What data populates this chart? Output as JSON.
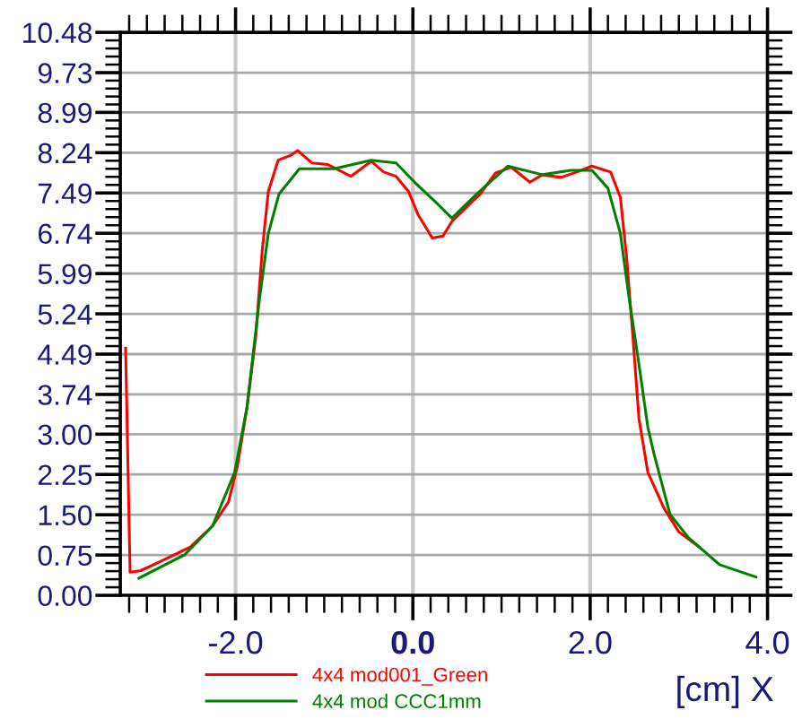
{
  "chart_data": {
    "type": "line",
    "xlabel": "[cm] X",
    "xlim": [
      -3.3,
      4.0
    ],
    "xticks": [
      {
        "value": -2.0,
        "label": "-2.0"
      },
      {
        "value": 0.0,
        "label": "0.0"
      },
      {
        "value": 2.0,
        "label": "2.0"
      },
      {
        "value": 4.0,
        "label": "4.0"
      }
    ],
    "ylim": [
      0.0,
      10.48
    ],
    "yticks": [
      {
        "value": 0.0,
        "label": "0.00"
      },
      {
        "value": 0.75,
        "label": "0.75"
      },
      {
        "value": 1.5,
        "label": "1.50"
      },
      {
        "value": 2.25,
        "label": "2.25"
      },
      {
        "value": 3.0,
        "label": "3.00"
      },
      {
        "value": 3.74,
        "label": "3.74"
      },
      {
        "value": 4.49,
        "label": "4.49"
      },
      {
        "value": 5.24,
        "label": "5.24"
      },
      {
        "value": 5.99,
        "label": "5.99"
      },
      {
        "value": 6.74,
        "label": "6.74"
      },
      {
        "value": 7.49,
        "label": "7.49"
      },
      {
        "value": 8.24,
        "label": "8.24"
      },
      {
        "value": 8.99,
        "label": "8.99"
      },
      {
        "value": 9.73,
        "label": "9.73"
      },
      {
        "value": 10.48,
        "label": "10.48"
      }
    ],
    "grid": true,
    "legend": "bottom",
    "marker": "none",
    "line_style": "solid",
    "series": [
      {
        "name": "4x4 mod001_Green",
        "color": "#ff0000",
        "x": [
          -3.24,
          -3.19,
          -3.07,
          -2.86,
          -2.51,
          -2.26,
          -2.08,
          -1.98,
          -1.87,
          -1.77,
          -1.7,
          -1.63,
          -1.52,
          -1.38,
          -1.3,
          -1.14,
          -0.96,
          -0.7,
          -0.47,
          -0.33,
          -0.19,
          -0.05,
          0.06,
          0.22,
          0.34,
          0.44,
          0.65,
          0.76,
          0.93,
          1.11,
          1.32,
          1.46,
          1.67,
          1.85,
          2.02,
          2.23,
          2.34,
          2.41,
          2.48,
          2.55,
          2.65,
          2.83,
          3.0,
          3.23
        ],
        "values": [
          4.6,
          0.43,
          0.46,
          0.62,
          0.9,
          1.29,
          1.74,
          2.4,
          3.51,
          4.85,
          6.41,
          7.52,
          8.1,
          8.19,
          8.28,
          8.05,
          8.02,
          7.8,
          8.08,
          7.88,
          7.8,
          7.52,
          7.08,
          6.65,
          6.69,
          6.96,
          7.3,
          7.47,
          7.86,
          7.97,
          7.69,
          7.83,
          7.78,
          7.88,
          7.99,
          7.88,
          7.41,
          6.3,
          4.85,
          3.29,
          2.29,
          1.63,
          1.18,
          0.9
        ]
      },
      {
        "name": "4x4 mod CCC1mm",
        "color": "#008000",
        "x": [
          -3.09,
          -2.57,
          -2.26,
          -2.01,
          -1.87,
          -1.73,
          -1.63,
          -1.51,
          -1.28,
          -0.89,
          -0.47,
          -0.19,
          0.02,
          0.27,
          0.44,
          0.72,
          1.07,
          1.46,
          1.78,
          2.02,
          2.2,
          2.34,
          2.44,
          2.55,
          2.65,
          2.72,
          2.9,
          3.11,
          3.46,
          3.87
        ],
        "values": [
          0.32,
          0.76,
          1.29,
          2.29,
          3.51,
          5.52,
          6.74,
          7.47,
          7.94,
          7.94,
          8.1,
          8.05,
          7.69,
          7.3,
          7.02,
          7.47,
          7.99,
          7.83,
          7.91,
          7.91,
          7.58,
          6.74,
          5.52,
          4.3,
          3.13,
          2.63,
          1.51,
          1.07,
          0.57,
          0.34
        ]
      }
    ]
  }
}
